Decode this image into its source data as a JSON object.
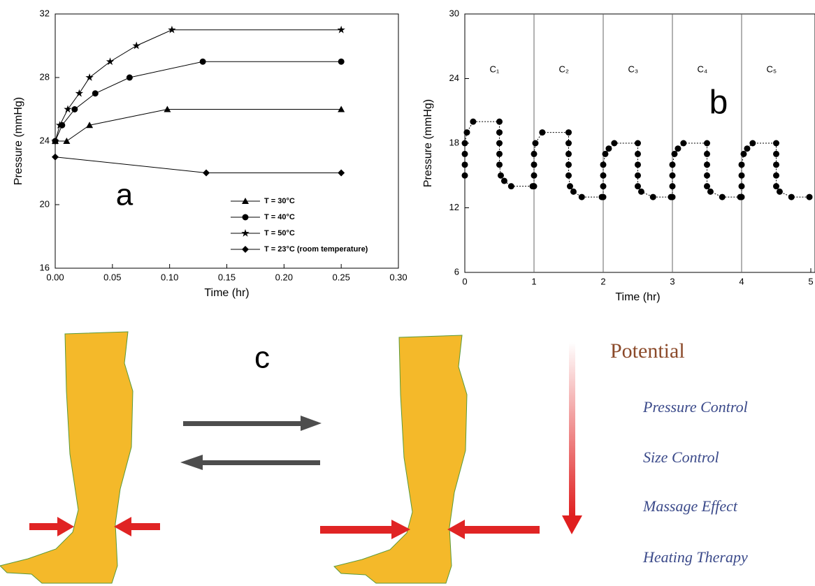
{
  "chart_data": [
    {
      "type": "line",
      "panel_label": "a",
      "x_label": "Time (hr)",
      "y_label": "Pressure (mmHg)",
      "xlim": [
        0,
        0.3
      ],
      "ylim": [
        16,
        32
      ],
      "xticks": [
        {
          "value": 0,
          "label": "0.00"
        },
        {
          "value": 0.05,
          "label": "0.05"
        },
        {
          "value": 0.1,
          "label": "0.10"
        },
        {
          "value": 0.15,
          "label": "0.15"
        },
        {
          "value": 0.2,
          "label": "0.20"
        },
        {
          "value": 0.25,
          "label": "0.25"
        },
        {
          "value": 0.3,
          "label": "0.30"
        }
      ],
      "yticks": [
        16,
        20,
        24,
        28,
        32
      ],
      "legend": "lower right",
      "series": [
        {
          "name": "T = 30°C",
          "color": "#000000",
          "marker": "triangle",
          "x": [
            0,
            0.01,
            0.03,
            0.098,
            0.25
          ],
          "values": [
            24,
            24,
            25,
            26,
            26
          ]
        },
        {
          "name": "T = 40°C",
          "color": "#000000",
          "marker": "circle",
          "x": [
            0,
            0.006,
            0.017,
            0.035,
            0.065,
            0.129,
            0.25
          ],
          "values": [
            24,
            25,
            26,
            27,
            28,
            29,
            29
          ]
        },
        {
          "name": "T = 50°C",
          "color": "#000000",
          "marker": "star",
          "x": [
            0,
            0.004,
            0.011,
            0.021,
            0.03,
            0.048,
            0.071,
            0.102,
            0.25
          ],
          "values": [
            24,
            25,
            26,
            27,
            28,
            29,
            30,
            31,
            31
          ]
        },
        {
          "name": "T = 23°C (room temperature)",
          "color": "#000000",
          "marker": "diamond",
          "x": [
            0,
            0.132,
            0.25
          ],
          "values": [
            23,
            22,
            22
          ]
        }
      ]
    },
    {
      "type": "line",
      "panel_label": "b",
      "x_label": "Time (hr)",
      "y_label": "Pressure (mmHg)",
      "xlim": [
        0,
        5
      ],
      "ylim": [
        6,
        30
      ],
      "xticks": [
        0,
        1,
        2,
        3,
        4,
        5
      ],
      "yticks": [
        6,
        12,
        18,
        24,
        30
      ],
      "vlines": [
        1,
        2,
        3,
        4
      ],
      "cycle_labels": [
        "C₁",
        "C₂",
        "C₃",
        "C₄",
        "C₅"
      ],
      "color": "#000000",
      "x": [
        0,
        0,
        0,
        0,
        0.03,
        0.12,
        0.5,
        0.5,
        0.5,
        0.5,
        0.5,
        0.52,
        0.57,
        0.67,
        0.98,
        1,
        1,
        1,
        1,
        1.02,
        1.12,
        1.5,
        1.5,
        1.5,
        1.5,
        1.5,
        1.52,
        1.57,
        1.69,
        1.98,
        2,
        2,
        2,
        2,
        2.03,
        2.08,
        2.16,
        2.5,
        2.5,
        2.5,
        2.5,
        2.5,
        2.55,
        2.72,
        2.98,
        3,
        3,
        3,
        3,
        3.03,
        3.08,
        3.16,
        3.5,
        3.5,
        3.5,
        3.5,
        3.5,
        3.55,
        3.72,
        3.98,
        4,
        4,
        4,
        4,
        4.03,
        4.08,
        4.16,
        4.5,
        4.5,
        4.5,
        4.5,
        4.5,
        4.55,
        4.72,
        4.98
      ],
      "values": [
        15,
        16,
        17,
        18,
        19,
        20,
        20,
        19,
        18,
        17,
        16,
        15,
        14.5,
        14,
        14,
        14,
        15,
        16,
        17,
        18,
        19,
        19,
        18,
        17,
        16,
        15,
        14,
        13.5,
        13,
        13,
        13,
        14,
        15,
        16,
        17,
        17.5,
        18,
        18,
        17,
        16,
        15,
        14,
        13.5,
        13,
        13,
        13,
        14,
        15,
        16,
        17,
        17.5,
        18,
        18,
        17,
        16,
        15,
        14,
        13.5,
        13,
        13,
        13,
        14,
        15,
        16,
        17,
        17.5,
        18,
        18,
        17,
        16,
        15,
        14,
        13.5,
        13,
        13
      ]
    }
  ],
  "panel_c": {
    "label": "c",
    "heading": "Potential",
    "items": [
      "Pressure Control",
      "Size Control",
      "Massage Effect",
      "Heating Therapy"
    ]
  }
}
